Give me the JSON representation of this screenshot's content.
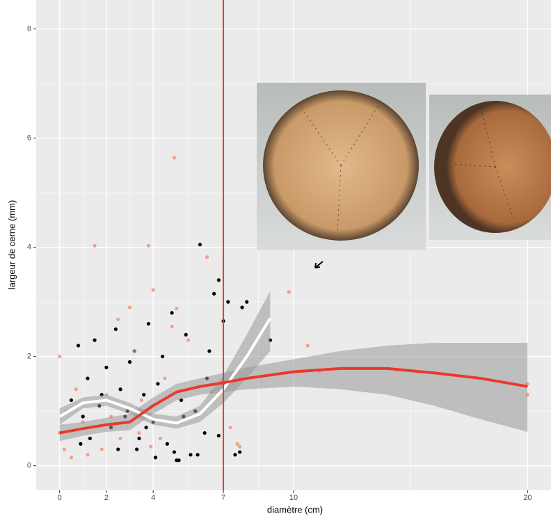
{
  "chart_data": {
    "type": "scatter",
    "x_label": "diamètre (cm)",
    "y_label": "largeur de cerne (mm)",
    "xlim": [
      -1,
      21
    ],
    "ylim": [
      -0.45,
      8.53
    ],
    "xticks": [
      0,
      2,
      4,
      7,
      10,
      20
    ],
    "yticks": [
      0,
      2,
      4,
      6,
      8
    ],
    "grid": true,
    "vline": 7,
    "vline_color": "#e8392c",
    "points": [
      {
        "color": "#000000",
        "x": [
          0.5,
          0.8,
          1,
          1.2,
          1.5,
          1.7,
          2,
          2.2,
          2.4,
          2.6,
          2.8,
          3,
          3.2,
          3.4,
          3.6,
          3.8,
          4,
          4.2,
          4.4,
          4.6,
          4.8,
          5,
          5.2,
          5.4,
          5.6,
          5.8,
          6,
          6.2,
          6.4,
          6.6,
          6.8,
          7,
          7.2,
          7.5,
          7.7,
          7.8,
          8,
          9,
          1.3,
          2.5,
          3.3,
          4.1,
          5.1,
          5.9,
          6.3,
          0.9,
          1.8,
          2.9,
          3.7,
          4.9,
          5.3,
          6.8
        ],
        "y": [
          1.2,
          2.2,
          0.9,
          1.6,
          2.3,
          1.1,
          1.8,
          0.7,
          2.5,
          1.4,
          0.9,
          1.9,
          2.1,
          0.5,
          1.3,
          2.6,
          0.8,
          1.5,
          2.0,
          0.4,
          2.8,
          0.1,
          1.2,
          2.4,
          0.2,
          1.0,
          4.05,
          0.6,
          2.1,
          3.15,
          0.55,
          2.65,
          3.0,
          0.2,
          0.25,
          2.9,
          3.0,
          2.3,
          0.5,
          0.3,
          0.3,
          0.15,
          0.1,
          0.2,
          1.6,
          0.4,
          1.3,
          1.0,
          0.7,
          0.25,
          0.9,
          3.4
        ]
      },
      {
        "color": "#f08a6a",
        "x": [
          0,
          0,
          0.2,
          0.5,
          1,
          1.5,
          2,
          2.5,
          2.6,
          3,
          3.2,
          3.5,
          3.8,
          3.9,
          4,
          4.5,
          4.8,
          4.9,
          5,
          5.5,
          6.3,
          6.5,
          7.3,
          7.6,
          7.7,
          9.8,
          10.6,
          11.1,
          20,
          20,
          0.3,
          1.2,
          2.2,
          3.4,
          4.3,
          5.2,
          0.7,
          1.8
        ],
        "y": [
          2.0,
          0.6,
          0.3,
          0.15,
          0.8,
          4.03,
          1.3,
          2.68,
          0.5,
          2.9,
          2.1,
          1.2,
          4.03,
          0.35,
          3.22,
          1.6,
          2.55,
          5.64,
          2.88,
          2.3,
          3.82,
          1.35,
          0.7,
          0.4,
          0.35,
          3.18,
          2.2,
          1.73,
          1.5,
          1.3,
          1.0,
          0.2,
          0.9,
          0.6,
          0.5,
          0.8,
          1.4,
          0.3
        ]
      }
    ],
    "smooths": [
      {
        "color": "#ffffff",
        "x": [
          0,
          1,
          2,
          3,
          4,
          5,
          6,
          7,
          8,
          9
        ],
        "y": [
          0.9,
          1.15,
          1.2,
          1.05,
          0.85,
          0.78,
          0.95,
          1.4,
          2.0,
          2.7
        ],
        "lower": [
          0.75,
          1.05,
          1.1,
          0.95,
          0.75,
          0.68,
          0.8,
          1.15,
          1.6,
          2.1
        ],
        "upper": [
          1.05,
          1.25,
          1.3,
          1.15,
          0.95,
          0.9,
          1.1,
          1.65,
          2.4,
          3.2
        ]
      },
      {
        "color": "#e8392c",
        "x": [
          0,
          1,
          2,
          3,
          4,
          5,
          6,
          7,
          8,
          10,
          12,
          14,
          16,
          18,
          20
        ],
        "y": [
          0.6,
          0.68,
          0.75,
          0.8,
          1.1,
          1.35,
          1.45,
          1.52,
          1.6,
          1.72,
          1.78,
          1.78,
          1.7,
          1.6,
          1.45
        ],
        "lower": [
          0.45,
          0.55,
          0.62,
          0.65,
          0.95,
          1.2,
          1.3,
          1.35,
          1.4,
          1.45,
          1.4,
          1.3,
          1.1,
          0.85,
          0.62
        ],
        "upper": [
          0.75,
          0.8,
          0.88,
          0.95,
          1.25,
          1.5,
          1.6,
          1.7,
          1.8,
          1.95,
          2.1,
          2.2,
          2.25,
          2.25,
          2.25
        ]
      }
    ]
  }
}
